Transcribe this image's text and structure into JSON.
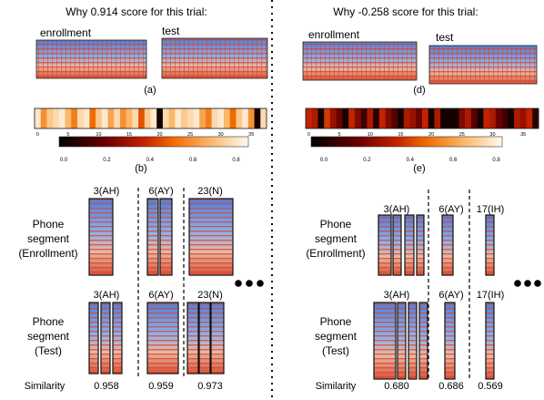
{
  "left": {
    "title": "Why 0.914 score for this trial:",
    "enroll_label": "enrollment",
    "test_label": "test",
    "label_a": "(a)",
    "label_b": "(b)",
    "phones": [
      "3(AH)",
      "6(AY)",
      "23(N)"
    ],
    "similarities": [
      "0.958",
      "0.959",
      "0.973"
    ],
    "axis_ticks": [
      "0",
      "5",
      "10",
      "15",
      "20",
      "25",
      "30",
      "35"
    ],
    "frame_intensity": [
      0.05,
      0.3,
      0.15,
      0.1,
      0.05,
      0.2,
      0.35,
      0.1,
      0.05,
      0.4,
      0.15,
      0.05,
      0.25,
      0.1,
      0.3,
      0.2,
      0.1,
      0.45,
      0.15,
      0.05,
      0.95,
      0.1,
      0.2,
      0.05,
      0.15,
      0.1,
      0.05,
      0.25,
      0.35,
      0.1,
      0.05,
      0.2,
      0.4,
      0.15,
      0.05,
      0.3,
      0.95,
      0.1
    ]
  },
  "right": {
    "title": "Why -0.258 score for this trial:",
    "enroll_label": "enrollment",
    "test_label": "test",
    "label_d": "(d)",
    "label_e": "(e)",
    "phones": [
      "3(AH)",
      "6(AY)",
      "17(IH)"
    ],
    "similarities": [
      "0.680",
      "0.686",
      "0.569"
    ],
    "axis_ticks": [
      "0",
      "5",
      "10",
      "15",
      "20",
      "25",
      "30",
      "35"
    ],
    "frame_intensity": [
      0.55,
      0.6,
      0.95,
      0.5,
      0.65,
      0.75,
      0.95,
      0.55,
      0.7,
      0.85,
      0.6,
      0.9,
      0.55,
      0.7,
      0.8,
      0.95,
      0.6,
      0.65,
      0.75,
      0.55,
      0.95,
      0.6,
      0.95,
      0.95,
      0.95,
      0.7,
      0.6,
      0.8,
      0.95,
      0.55,
      0.6,
      0.75,
      0.85,
      0.95,
      0.6,
      0.65,
      0.55,
      0.9
    ]
  },
  "colorbar_ticks": [
    "0.0",
    "0.2",
    "0.4",
    "0.6",
    "0.8"
  ],
  "row_labels": {
    "enroll": [
      "Phone",
      "segment",
      "(Enrollment)"
    ],
    "test": [
      "Phone",
      "segment",
      "(Test)"
    ],
    "similarity": "Similarity"
  },
  "colors": {
    "hot_dark": "#1a0000",
    "hot_mid": "#e05a00",
    "hot_light": "#fff8ec",
    "spec_blue": "#4a78d8",
    "spec_red": "#d9432a"
  }
}
